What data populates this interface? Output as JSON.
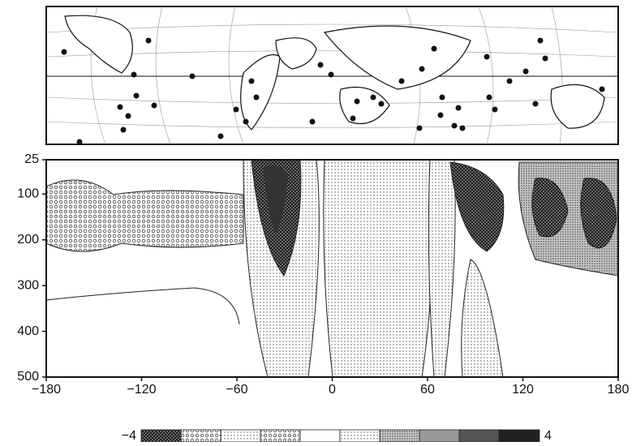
{
  "chart_data": {
    "type": "contour",
    "xlim": [
      -180,
      180
    ],
    "xticks": [
      {
        "value": -180,
        "label": "−180"
      },
      {
        "value": -120,
        "label": "−120"
      },
      {
        "value": -60,
        "label": "−60"
      },
      0,
      60,
      120,
      180
    ],
    "ylim": [
      25,
      500
    ],
    "y_inverted": true,
    "yticks": [
      25,
      100,
      200,
      300,
      400,
      500
    ],
    "colorbar": {
      "ticks": [
        {
          "value": -4,
          "label": "−4"
        },
        4
      ]
    }
  }
}
